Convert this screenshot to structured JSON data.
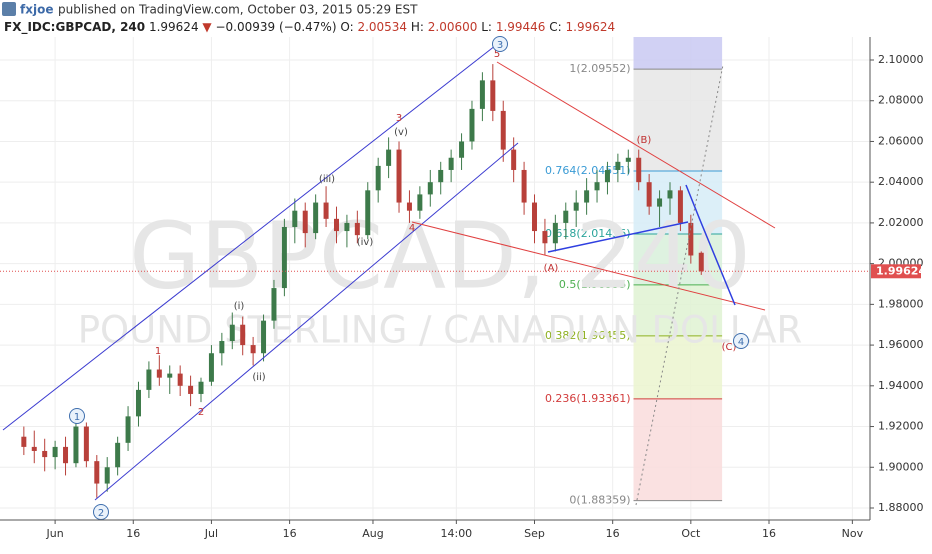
{
  "header": {
    "author": "fxjoe",
    "published": "published on TradingView.com, October 03, 2015 05:29 EST",
    "symbol": "FX_IDC:GBPCAD, 240",
    "price": "1.99624",
    "arrow": "▼",
    "change": "−0.00939 (−0.47%)",
    "ohlc": [
      "O:",
      "2.00534",
      "H:",
      "2.00600",
      "L:",
      "1.99446",
      "C:",
      "1.99624"
    ]
  },
  "chart_data": {
    "type": "candlestick",
    "watermark": [
      "GBPCAD, 240",
      "POUND STERLING / CANADIAN DOLLAR"
    ],
    "x": [
      "2015-05-26",
      "2015-05-28",
      "2015-05-30",
      "2015-06-01",
      "2015-06-03",
      "2015-06-05",
      "2015-06-07",
      "2015-06-09",
      "2015-06-11",
      "2015-06-13",
      "2015-06-15",
      "2015-06-17",
      "2015-06-19",
      "2015-06-21",
      "2015-06-23",
      "2015-06-25",
      "2015-06-27",
      "2015-06-29",
      "2015-07-01",
      "2015-07-03",
      "2015-07-05",
      "2015-07-07",
      "2015-07-09",
      "2015-07-11",
      "2015-07-13",
      "2015-07-15",
      "2015-07-17",
      "2015-07-19",
      "2015-07-21",
      "2015-07-23",
      "2015-07-25",
      "2015-07-27",
      "2015-07-29",
      "2015-07-31",
      "2015-08-02",
      "2015-08-04",
      "2015-08-06",
      "2015-08-08",
      "2015-08-10",
      "2015-08-12",
      "2015-08-14",
      "2015-08-16",
      "2015-08-18",
      "2015-08-20",
      "2015-08-22",
      "2015-08-24",
      "2015-08-26",
      "2015-08-28",
      "2015-08-30",
      "2015-09-01",
      "2015-09-03",
      "2015-09-05",
      "2015-09-07",
      "2015-09-09",
      "2015-09-11",
      "2015-09-13",
      "2015-09-15",
      "2015-09-17",
      "2015-09-19",
      "2015-09-21",
      "2015-09-23",
      "2015-09-25",
      "2015-09-27",
      "2015-09-29",
      "2015-10-01",
      "2015-10-03"
    ],
    "open": [
      1.915,
      1.91,
      1.908,
      1.905,
      1.91,
      1.902,
      1.92,
      1.903,
      1.892,
      1.9,
      1.912,
      1.925,
      1.938,
      1.948,
      1.944,
      1.946,
      1.94,
      1.936,
      1.942,
      1.956,
      1.962,
      1.97,
      1.96,
      1.956,
      1.972,
      1.988,
      2.018,
      2.026,
      2.015,
      2.03,
      2.022,
      2.016,
      2.02,
      2.014,
      2.036,
      2.048,
      2.056,
      2.03,
      2.026,
      2.034,
      2.04,
      2.046,
      2.052,
      2.06,
      2.076,
      2.09,
      2.075,
      2.056,
      2.046,
      2.03,
      2.016,
      2.01,
      2.02,
      2.026,
      2.03,
      2.036,
      2.04,
      2.046,
      2.05,
      2.052,
      2.04,
      2.028,
      2.032,
      2.036,
      2.02,
      2.00534
    ],
    "high": [
      1.92,
      1.918,
      1.914,
      1.913,
      1.915,
      1.924,
      1.922,
      1.906,
      1.905,
      1.915,
      1.93,
      1.942,
      1.952,
      1.955,
      1.95,
      1.95,
      1.945,
      1.944,
      1.96,
      1.966,
      1.976,
      1.974,
      1.964,
      1.975,
      1.992,
      2.022,
      2.032,
      2.03,
      2.034,
      2.038,
      2.028,
      2.024,
      2.026,
      2.04,
      2.052,
      2.062,
      2.06,
      2.036,
      2.038,
      2.046,
      2.05,
      2.056,
      2.064,
      2.08,
      2.094,
      2.098,
      2.08,
      2.062,
      2.05,
      2.034,
      2.022,
      2.024,
      2.03,
      2.036,
      2.042,
      2.046,
      2.05,
      2.054,
      2.056,
      2.056,
      2.044,
      2.036,
      2.04,
      2.038,
      2.024,
      2.006
    ],
    "low": [
      1.906,
      1.902,
      1.898,
      1.899,
      1.896,
      1.9,
      1.9,
      1.885,
      1.888,
      1.896,
      1.908,
      1.92,
      1.934,
      1.94,
      1.936,
      1.935,
      1.93,
      1.932,
      1.94,
      1.95,
      1.958,
      1.955,
      1.95,
      1.952,
      1.968,
      1.984,
      2.01,
      2.008,
      2.012,
      2.018,
      2.01,
      2.008,
      2.01,
      2.012,
      2.03,
      2.042,
      2.025,
      2.02,
      2.022,
      2.028,
      2.034,
      2.04,
      2.046,
      2.056,
      2.07,
      2.07,
      2.05,
      2.04,
      2.024,
      2.01,
      2.004,
      2.006,
      2.012,
      2.018,
      2.024,
      2.03,
      2.034,
      2.04,
      2.044,
      2.036,
      2.024,
      2.018,
      2.024,
      2.016,
      2.0,
      1.99446
    ],
    "close": [
      1.91,
      1.908,
      1.905,
      1.91,
      1.902,
      1.92,
      1.903,
      1.892,
      1.9,
      1.912,
      1.925,
      1.938,
      1.948,
      1.944,
      1.946,
      1.94,
      1.936,
      1.942,
      1.956,
      1.962,
      1.97,
      1.96,
      1.956,
      1.972,
      1.988,
      2.018,
      2.026,
      2.015,
      2.03,
      2.022,
      2.016,
      2.02,
      2.014,
      2.036,
      2.048,
      2.056,
      2.03,
      2.026,
      2.034,
      2.04,
      2.046,
      2.052,
      2.06,
      2.076,
      2.09,
      2.075,
      2.056,
      2.046,
      2.03,
      2.016,
      2.01,
      2.02,
      2.026,
      2.03,
      2.036,
      2.04,
      2.046,
      2.05,
      2.052,
      2.04,
      2.028,
      2.032,
      2.036,
      2.02,
      2.004,
      1.99624
    ],
    "up_color": "#3d7a4a",
    "down_color": "#b8403a",
    "last_price": 1.99624,
    "last_price_color": "#e04f4f",
    "xlim": [
      "2015-05-22",
      "2015-11-04"
    ],
    "xticks": [
      {
        "value": "2015-06-01",
        "label": "Jun"
      },
      {
        "value": "2015-06-16",
        "label": "16"
      },
      {
        "value": "2015-07-01",
        "label": "Jul"
      },
      {
        "value": "2015-07-16",
        "label": "16"
      },
      {
        "value": "2015-08-01",
        "label": "Aug"
      },
      {
        "value": "2015-08-17",
        "label": "14:00"
      },
      {
        "value": "2015-09-01",
        "label": "Sep"
      },
      {
        "value": "2015-09-16",
        "label": "16"
      },
      {
        "value": "2015-10-01",
        "label": "Oct"
      },
      {
        "value": "2015-10-16",
        "label": "16"
      },
      {
        "value": "2015-11-01",
        "label": "Nov"
      }
    ],
    "ylim": [
      1.8741,
      2.1113
    ],
    "yticks": [
      {
        "value": 1.88,
        "label": "1.88000"
      },
      {
        "value": 1.9,
        "label": "1.90000"
      },
      {
        "value": 1.92,
        "label": "1.92000"
      },
      {
        "value": 1.94,
        "label": "1.94000"
      },
      {
        "value": 1.96,
        "label": "1.96000"
      },
      {
        "value": 1.98,
        "label": "1.98000"
      },
      {
        "value": 2.0,
        "label": "2.00000"
      },
      {
        "value": 2.02,
        "label": "2.02000"
      },
      {
        "value": 2.04,
        "label": "2.04000"
      },
      {
        "value": 2.06,
        "label": "2.06000"
      },
      {
        "value": 2.08,
        "label": "2.08000"
      },
      {
        "value": 2.1,
        "label": "2.10000"
      }
    ],
    "grid": true,
    "fib": {
      "start": "2015-09-20",
      "end": "2015-10-07",
      "levels": [
        {
          "label": "1(2.09552)",
          "value": 2.09552,
          "color": "#888888",
          "band": "#c9c9f2"
        },
        {
          "label": "0.764(2.04551)",
          "value": 2.04551,
          "color": "#3a9bd5",
          "band": "#e6e6e6"
        },
        {
          "label": "0.618(2.01456)",
          "value": 2.01456,
          "color": "#2aa39a",
          "band": "#d6ecf7"
        },
        {
          "label": "0.5(1.98955)",
          "value": 1.98955,
          "color": "#4caf50",
          "band": "#d8f0da"
        },
        {
          "label": "0.382(1.96455)",
          "value": 1.96455,
          "color": "#8eb020",
          "band": "#dff2d2"
        },
        {
          "label": "0.236(1.93361)",
          "value": 1.93361,
          "color": "#d23c3c",
          "band": "#ebf5cf"
        },
        {
          "label": "0(1.88359)",
          "value": 1.88359,
          "color": "#888888",
          "band": "#f9dcdc"
        }
      ]
    },
    "annotations": [
      {
        "text": "1",
        "color": "#3f6fae",
        "circled": true
      },
      {
        "text": "2",
        "color": "#3f6fae",
        "circled": true
      },
      {
        "text": "1",
        "color": "#c03030",
        "circled": false
      },
      {
        "text": "2",
        "color": "#c03030",
        "circled": false
      },
      {
        "text": "(i)",
        "color": "#444444",
        "circled": false
      },
      {
        "text": "(ii)",
        "color": "#444444",
        "circled": false
      },
      {
        "text": "(iii)",
        "color": "#444444",
        "circled": false
      },
      {
        "text": "(iv)",
        "color": "#444444",
        "circled": false
      },
      {
        "text": "3",
        "color": "#c03030",
        "circled": false
      },
      {
        "text": "(v)",
        "color": "#444444",
        "circled": false
      },
      {
        "text": "4",
        "color": "#c03030",
        "circled": false
      },
      {
        "text": "5",
        "color": "#c03030",
        "circled": false
      },
      {
        "text": "3",
        "color": "#3f6fae",
        "circled": true
      },
      {
        "text": "(A)",
        "color": "#c03030",
        "circled": false
      },
      {
        "text": "(B)",
        "color": "#c03030",
        "circled": false
      },
      {
        "text": "(C)",
        "color": "#c03030",
        "circled": false
      },
      {
        "text": "4",
        "color": "#3f6fae",
        "circled": true
      }
    ]
  }
}
